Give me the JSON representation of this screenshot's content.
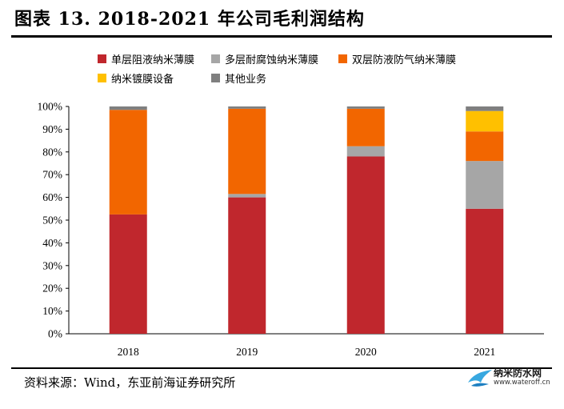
{
  "title": "图表 13. 2018-2021 年公司毛利润结构",
  "source": "资料来源：Wind，东亚前海证券研究所",
  "watermark": {
    "name": "纳米防水网",
    "url": "www.wateroff.cn"
  },
  "chart_data": {
    "type": "bar",
    "stacked": true,
    "categories": [
      "2018",
      "2019",
      "2020",
      "2021"
    ],
    "ylim": [
      0,
      100
    ],
    "yticks": [
      "0%",
      "10%",
      "20%",
      "30%",
      "40%",
      "50%",
      "60%",
      "70%",
      "80%",
      "90%",
      "100%"
    ],
    "legend_position": "top",
    "series": [
      {
        "name": "单层阻液纳米薄膜",
        "color": "#C0272D",
        "values": [
          52.5,
          60.0,
          78.0,
          55.0
        ]
      },
      {
        "name": "多层耐腐蚀纳米薄膜",
        "color": "#A6A6A6",
        "values": [
          0,
          1.5,
          4.5,
          21.0
        ]
      },
      {
        "name": "双层防液防气纳米薄膜",
        "color": "#F26600",
        "values": [
          46.0,
          37.5,
          16.5,
          13.0
        ]
      },
      {
        "name": "纳米镀膜设备",
        "color": "#FFC000",
        "values": [
          0,
          0,
          0,
          9.0
        ]
      },
      {
        "name": "其他业务",
        "color": "#7F7F7F",
        "values": [
          1.5,
          1.0,
          1.0,
          2.0
        ]
      }
    ]
  }
}
